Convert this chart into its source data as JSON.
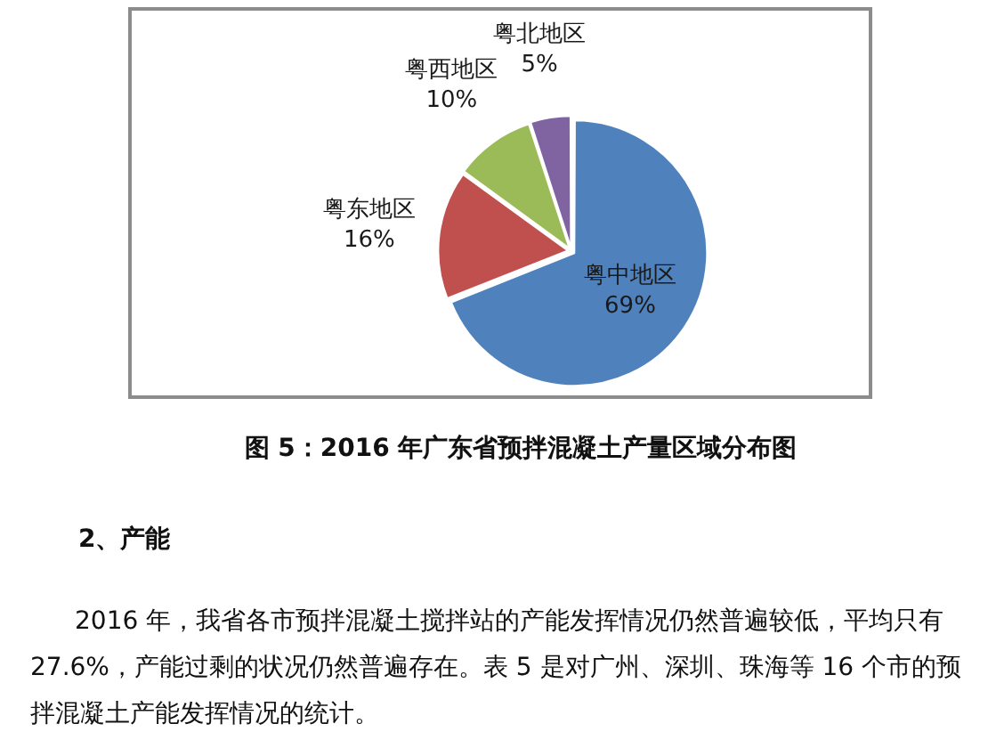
{
  "chart_data": {
    "type": "pie",
    "title": "图 5：2016 年广东省预拌混凝土产量区域分布图",
    "categories": [
      "粤中地区",
      "粤东地区",
      "粤西地区",
      "粤北地区"
    ],
    "values": [
      69,
      16,
      10,
      5
    ],
    "colors": [
      "#4f81bd",
      "#c0504d",
      "#9bbb59",
      "#8064a2"
    ],
    "value_labels": [
      "69%",
      "16%",
      "10%",
      "5%"
    ],
    "annotations": [
      "2、产能",
      "2016 年，我省各市预拌混凝土搅拌站的产能发挥情况仍然普遍较低，平均只有 27.6%，产能过剩的状况仍然普遍存在。表 5 是对广州、深圳、珠海等 16 个市的预拌混凝土产能发挥情况的统计。"
    ]
  }
}
